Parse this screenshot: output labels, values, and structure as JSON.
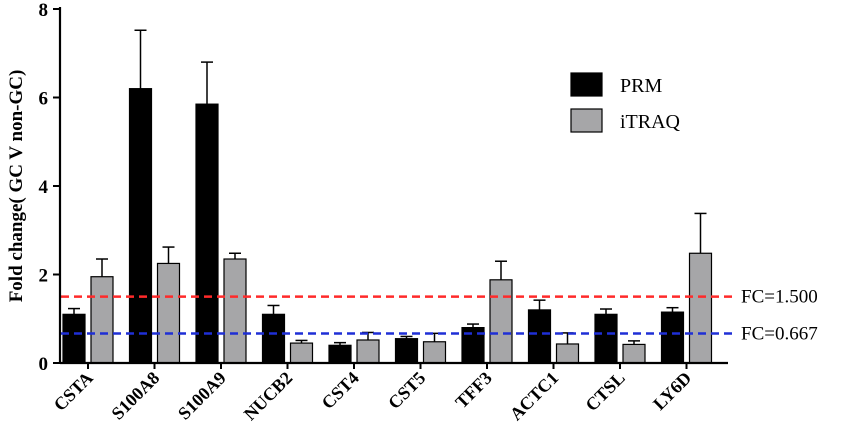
{
  "chart_data": {
    "type": "bar",
    "title": "",
    "xlabel": "",
    "ylabel": "Fold change( GC V non-GC)",
    "ylim": [
      0,
      8
    ],
    "yticks": [
      0,
      2,
      4,
      6,
      8
    ],
    "grid": false,
    "legend_position": "top-right",
    "categories": [
      "CSTA",
      "S100A8",
      "S100A9",
      "NUCB2",
      "CST4",
      "CST5",
      "TFF3",
      "ACTC1",
      "CTSL",
      "LY6D"
    ],
    "series": [
      {
        "name": "PRM",
        "color": "#000000",
        "values": [
          1.1,
          6.2,
          5.85,
          1.1,
          0.4,
          0.55,
          0.8,
          1.2,
          1.1,
          1.15
        ],
        "errors": [
          0.13,
          1.32,
          0.95,
          0.2,
          0.06,
          0.05,
          0.08,
          0.22,
          0.12,
          0.1
        ]
      },
      {
        "name": "iTRAQ",
        "color": "#a6a6a8",
        "values": [
          1.95,
          2.25,
          2.35,
          0.45,
          0.52,
          0.48,
          1.88,
          0.43,
          0.42,
          2.48
        ],
        "errors": [
          0.4,
          0.37,
          0.13,
          0.06,
          0.17,
          0.19,
          0.42,
          0.25,
          0.08,
          0.9
        ]
      }
    ],
    "reference_lines": [
      {
        "label": "FC=1.500",
        "value": 1.5,
        "color": "#ff2a2a"
      },
      {
        "label": "FC=0.667",
        "value": 0.667,
        "color": "#1f2fd6"
      }
    ]
  }
}
